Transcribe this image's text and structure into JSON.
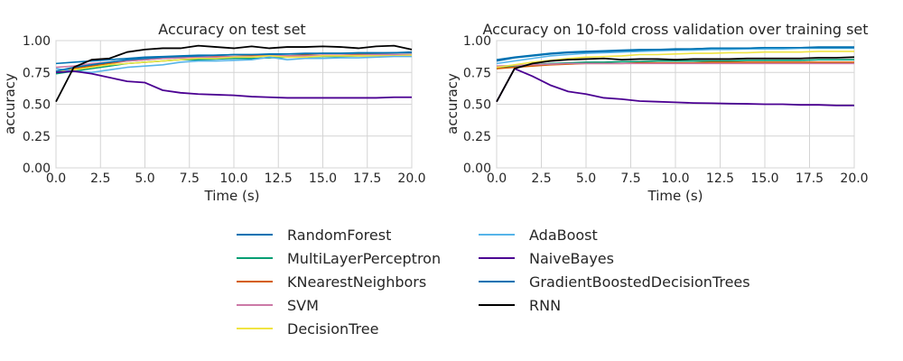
{
  "chart_data": [
    {
      "type": "line",
      "title": "Accuracy on test set",
      "xlabel": "Time (s)",
      "ylabel": "accuracy",
      "xlim": [
        0,
        20
      ],
      "ylim": [
        0,
        1
      ],
      "grid": true,
      "x_ticks": [
        "0.0",
        "2.5",
        "5.0",
        "7.5",
        "10.0",
        "12.5",
        "15.0",
        "17.5",
        "20.0"
      ],
      "y_ticks": [
        "0.00",
        "0.25",
        "0.50",
        "0.75",
        "1.00"
      ],
      "x": [
        0,
        1,
        2,
        3,
        4,
        5,
        6,
        7,
        8,
        9,
        10,
        11,
        12,
        13,
        14,
        15,
        16,
        17,
        18,
        19,
        20
      ],
      "series": [
        {
          "name": "RandomForest",
          "color": "#0072b2",
          "values": [
            0.82,
            0.83,
            0.84,
            0.85,
            0.86,
            0.87,
            0.875,
            0.88,
            0.885,
            0.885,
            0.89,
            0.89,
            0.89,
            0.895,
            0.895,
            0.9,
            0.9,
            0.9,
            0.9,
            0.905,
            0.905
          ]
        },
        {
          "name": "MultiLayerPerceptron",
          "color": "#009e73",
          "values": [
            0.74,
            0.76,
            0.78,
            0.8,
            0.82,
            0.83,
            0.84,
            0.85,
            0.85,
            0.855,
            0.86,
            0.86,
            0.865,
            0.87,
            0.87,
            0.875,
            0.875,
            0.88,
            0.88,
            0.88,
            0.885
          ]
        },
        {
          "name": "KNearestNeighbors",
          "color": "#d55e00",
          "values": [
            0.75,
            0.78,
            0.8,
            0.82,
            0.84,
            0.85,
            0.86,
            0.865,
            0.87,
            0.875,
            0.875,
            0.88,
            0.88,
            0.88,
            0.885,
            0.885,
            0.885,
            0.89,
            0.89,
            0.89,
            0.89
          ]
        },
        {
          "name": "SVM",
          "color": "#cc79a7",
          "values": [
            0.79,
            0.8,
            0.82,
            0.83,
            0.84,
            0.85,
            0.86,
            0.865,
            0.87,
            0.87,
            0.875,
            0.875,
            0.88,
            0.88,
            0.88,
            0.885,
            0.885,
            0.885,
            0.89,
            0.89,
            0.89
          ]
        },
        {
          "name": "DecisionTree",
          "color": "#f0e442",
          "values": [
            0.76,
            0.77,
            0.79,
            0.81,
            0.82,
            0.83,
            0.84,
            0.85,
            0.86,
            0.86,
            0.87,
            0.87,
            0.88,
            0.87,
            0.87,
            0.88,
            0.88,
            0.88,
            0.88,
            0.88,
            0.885
          ]
        },
        {
          "name": "AdaBoost",
          "color": "#56b4e9",
          "values": [
            0.78,
            0.76,
            0.75,
            0.77,
            0.79,
            0.8,
            0.81,
            0.83,
            0.84,
            0.84,
            0.845,
            0.85,
            0.87,
            0.85,
            0.86,
            0.86,
            0.865,
            0.865,
            0.87,
            0.875,
            0.875
          ]
        },
        {
          "name": "NaiveBayes",
          "color": "#4b0092",
          "values": [
            0.75,
            0.76,
            0.74,
            0.71,
            0.68,
            0.67,
            0.61,
            0.59,
            0.58,
            0.575,
            0.57,
            0.56,
            0.555,
            0.55,
            0.55,
            0.55,
            0.55,
            0.55,
            0.55,
            0.555,
            0.555
          ]
        },
        {
          "name": "GradientBoostedDecisionTrees",
          "color": "#0072b2",
          "values": [
            0.76,
            0.79,
            0.81,
            0.83,
            0.85,
            0.86,
            0.87,
            0.875,
            0.88,
            0.885,
            0.89,
            0.89,
            0.895,
            0.895,
            0.9,
            0.9,
            0.9,
            0.905,
            0.905,
            0.905,
            0.91
          ]
        },
        {
          "name": "RNN",
          "color": "#000000",
          "values": [
            0.52,
            0.79,
            0.85,
            0.86,
            0.91,
            0.93,
            0.94,
            0.94,
            0.96,
            0.95,
            0.94,
            0.955,
            0.94,
            0.95,
            0.95,
            0.955,
            0.95,
            0.94,
            0.955,
            0.96,
            0.93
          ]
        }
      ]
    },
    {
      "type": "line",
      "title": "Accuracy on 10-fold cross validation over training set",
      "xlabel": "Time (s)",
      "ylabel": "accuracy",
      "xlim": [
        0,
        20
      ],
      "ylim": [
        0,
        1
      ],
      "grid": true,
      "x_ticks": [
        "0.0",
        "2.5",
        "5.0",
        "7.5",
        "10.0",
        "12.5",
        "15.0",
        "17.5",
        "20.0"
      ],
      "y_ticks": [
        "0.00",
        "0.25",
        "0.50",
        "0.75",
        "1.00"
      ],
      "x": [
        0,
        1,
        2,
        3,
        4,
        5,
        6,
        7,
        8,
        9,
        10,
        11,
        12,
        13,
        14,
        15,
        16,
        17,
        18,
        19,
        20
      ],
      "series": [
        {
          "name": "RandomForest",
          "color": "#0072b2",
          "values": [
            0.85,
            0.87,
            0.885,
            0.9,
            0.91,
            0.915,
            0.92,
            0.925,
            0.93,
            0.93,
            0.935,
            0.935,
            0.94,
            0.94,
            0.94,
            0.945,
            0.945,
            0.945,
            0.95,
            0.95,
            0.95
          ]
        },
        {
          "name": "MultiLayerPerceptron",
          "color": "#009e73",
          "values": [
            0.78,
            0.8,
            0.81,
            0.82,
            0.825,
            0.83,
            0.83,
            0.835,
            0.835,
            0.84,
            0.84,
            0.84,
            0.84,
            0.84,
            0.845,
            0.845,
            0.845,
            0.845,
            0.85,
            0.85,
            0.85
          ]
        },
        {
          "name": "KNearestNeighbors",
          "color": "#d55e00",
          "values": [
            0.78,
            0.79,
            0.8,
            0.81,
            0.815,
            0.82,
            0.82,
            0.82,
            0.825,
            0.825,
            0.825,
            0.825,
            0.83,
            0.83,
            0.83,
            0.83,
            0.83,
            0.83,
            0.83,
            0.83,
            0.83
          ]
        },
        {
          "name": "SVM",
          "color": "#cc79a7",
          "values": [
            0.8,
            0.805,
            0.81,
            0.815,
            0.82,
            0.82,
            0.82,
            0.82,
            0.82,
            0.82,
            0.82,
            0.82,
            0.82,
            0.82,
            0.82,
            0.82,
            0.82,
            0.82,
            0.82,
            0.82,
            0.82
          ]
        },
        {
          "name": "DecisionTree",
          "color": "#f0e442",
          "values": [
            0.79,
            0.81,
            0.83,
            0.845,
            0.86,
            0.87,
            0.875,
            0.88,
            0.89,
            0.89,
            0.895,
            0.9,
            0.9,
            0.905,
            0.905,
            0.91,
            0.91,
            0.91,
            0.915,
            0.915,
            0.915
          ]
        },
        {
          "name": "AdaBoost",
          "color": "#56b4e9",
          "values": [
            0.82,
            0.84,
            0.86,
            0.88,
            0.89,
            0.9,
            0.905,
            0.91,
            0.915,
            0.92,
            0.925,
            0.925,
            0.93,
            0.93,
            0.935,
            0.935,
            0.935,
            0.94,
            0.94,
            0.94,
            0.94
          ]
        },
        {
          "name": "NaiveBayes",
          "color": "#4b0092",
          "values": [
            0.52,
            0.78,
            0.72,
            0.65,
            0.6,
            0.58,
            0.55,
            0.54,
            0.525,
            0.52,
            0.515,
            0.51,
            0.508,
            0.505,
            0.503,
            0.5,
            0.5,
            0.495,
            0.495,
            0.49,
            0.49
          ]
        },
        {
          "name": "GradientBoostedDecisionTrees",
          "color": "#0072b2",
          "values": [
            0.84,
            0.865,
            0.88,
            0.895,
            0.905,
            0.91,
            0.915,
            0.92,
            0.925,
            0.93,
            0.93,
            0.935,
            0.94,
            0.94,
            0.94,
            0.945,
            0.945,
            0.945,
            0.945,
            0.945,
            0.945
          ]
        },
        {
          "name": "RNN",
          "color": "#000000",
          "values": [
            0.52,
            0.78,
            0.82,
            0.84,
            0.85,
            0.855,
            0.86,
            0.85,
            0.855,
            0.855,
            0.85,
            0.855,
            0.855,
            0.855,
            0.86,
            0.86,
            0.86,
            0.86,
            0.865,
            0.865,
            0.87
          ]
        }
      ]
    }
  ],
  "legend": {
    "columns": [
      [
        "RandomForest",
        "MultiLayerPerceptron",
        "KNearestNeighbors",
        "SVM",
        "DecisionTree"
      ],
      [
        "AdaBoost",
        "NaiveBayes",
        "GradientBoostedDecisionTrees",
        "RNN"
      ]
    ],
    "colors": {
      "RandomForest": "#0072b2",
      "MultiLayerPerceptron": "#009e73",
      "KNearestNeighbors": "#d55e00",
      "SVM": "#cc79a7",
      "DecisionTree": "#f0e442",
      "AdaBoost": "#56b4e9",
      "NaiveBayes": "#4b0092",
      "GradientBoostedDecisionTrees": "#0072b2",
      "RNN": "#000000"
    }
  }
}
